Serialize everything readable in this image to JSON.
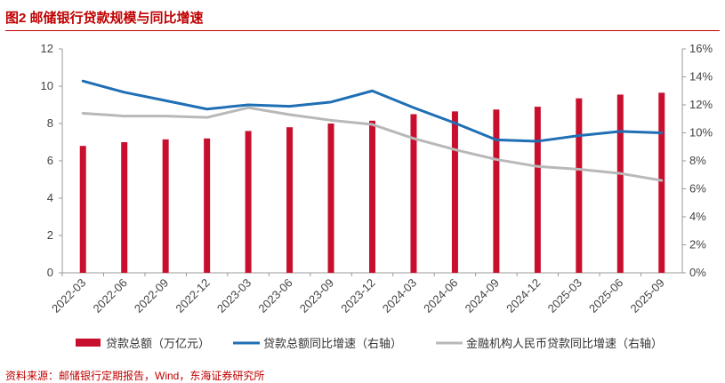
{
  "figure": {
    "title": "图2  邮储银行贷款规模与同比增速",
    "source": "资料来源：邮储银行定期报告，Wind，东海证券研究所"
  },
  "colors": {
    "bar": "#c8102e",
    "line_bank": "#1f6fb5",
    "line_industry": "#b8b8b8",
    "title": "#c00000"
  },
  "chart_data": {
    "type": "bar+line",
    "categories": [
      "2022-03",
      "2022-06",
      "2022-09",
      "2022-12",
      "2023-03",
      "2023-06",
      "2023-09",
      "2023-12",
      "2024-03",
      "2024-06",
      "2024-09",
      "2024-12",
      "2025-03",
      "2025-06",
      "2025-09"
    ],
    "left_axis": {
      "min": 0,
      "max": 12,
      "ticks": [
        "0",
        "2",
        "4",
        "6",
        "8",
        "10",
        "12"
      ]
    },
    "right_axis": {
      "min": 0,
      "max": 16,
      "ticks": [
        "0%",
        "2%",
        "4%",
        "6%",
        "8%",
        "10%",
        "12%",
        "14%",
        "16%"
      ]
    },
    "grid": false,
    "legend_position": "bottom",
    "series": [
      {
        "name": "贷款总额（万亿元）",
        "kind": "bar",
        "axis": "left",
        "values": [
          6.8,
          7.0,
          7.15,
          7.2,
          7.6,
          7.8,
          8.0,
          8.15,
          8.5,
          8.65,
          8.75,
          8.9,
          9.35,
          9.55,
          9.65
        ]
      },
      {
        "name": "贷款总额同比增速（右轴）",
        "kind": "line",
        "axis": "right",
        "values": [
          13.7,
          12.9,
          12.3,
          11.7,
          12.0,
          11.9,
          12.2,
          13.0,
          11.8,
          10.7,
          9.5,
          9.4,
          9.8,
          10.1,
          10.0
        ]
      },
      {
        "name": "金融机构人民币贷款同比增速（右轴）",
        "kind": "line",
        "axis": "right",
        "values": [
          11.4,
          11.2,
          11.2,
          11.1,
          11.8,
          11.3,
          10.9,
          10.6,
          9.6,
          8.8,
          8.1,
          7.6,
          7.4,
          7.1,
          6.6
        ]
      }
    ]
  }
}
